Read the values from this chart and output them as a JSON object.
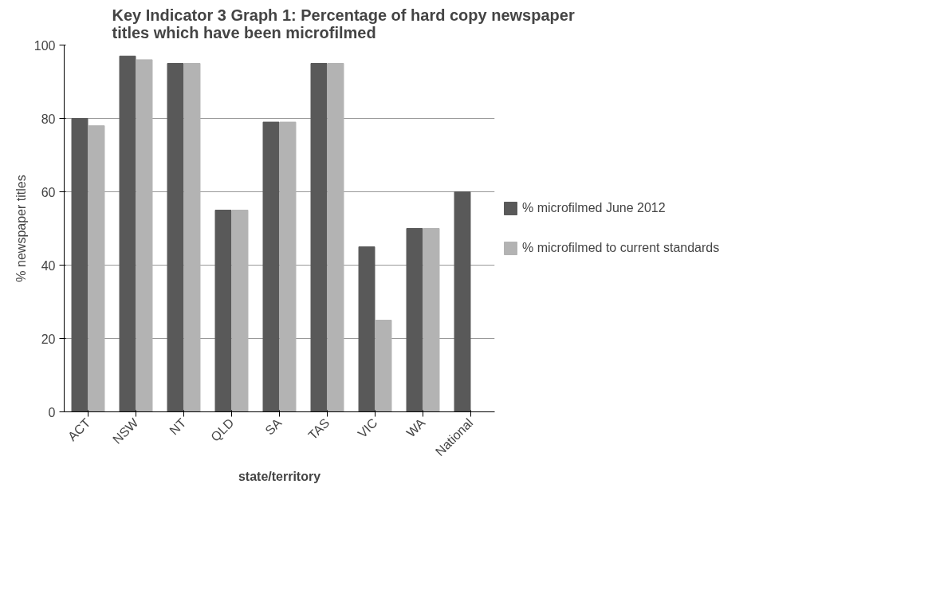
{
  "chart_data": {
    "type": "bar",
    "title": "Key Indicator 3 Graph 1: Percentage of hard copy newspaper titles which have been microfilmed",
    "xlabel": "state/territory",
    "ylabel": "% newspaper titles",
    "categories": [
      "ACT",
      "NSW",
      "NT",
      "QLD",
      "SA",
      "TAS",
      "VIC",
      "WA",
      "National"
    ],
    "series": [
      {
        "name": "% microfilmed June 2012",
        "color": "#595959",
        "values": [
          80,
          97,
          95,
          55,
          79,
          95,
          45,
          50,
          60
        ]
      },
      {
        "name": "% microfilmed to current standards",
        "color": "#b3b3b3",
        "values": [
          78,
          96,
          95,
          55,
          79,
          95,
          25,
          50,
          null
        ]
      }
    ],
    "ylim": [
      0,
      100
    ],
    "yticks": [
      0,
      20,
      40,
      60,
      80,
      100
    ],
    "grid": "y",
    "legend": "right"
  }
}
